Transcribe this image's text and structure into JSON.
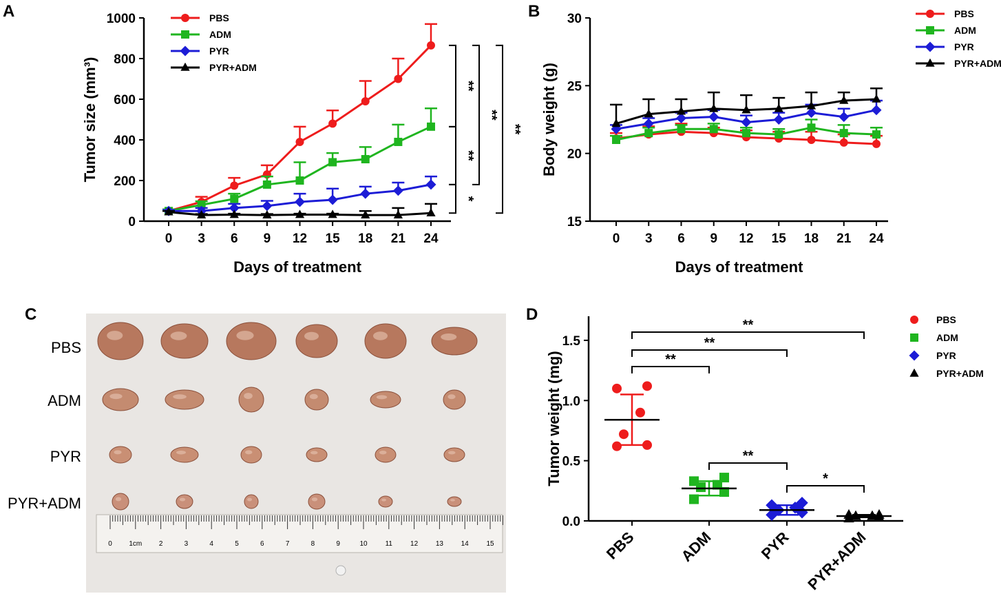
{
  "panels": {
    "A": "A",
    "B": "B",
    "C": "C",
    "D": "D"
  },
  "colors": {
    "PBS": "#ee1c1c",
    "ADM": "#1fb51f",
    "PYR": "#1c1cd6",
    "PYR+ADM": "#000000"
  },
  "photo": {
    "row_labels": [
      "PBS",
      "ADM",
      "PYR",
      "PYR+ADM"
    ],
    "ruler_labels": [
      "0",
      "1cm",
      "2",
      "3",
      "4",
      "5",
      "6",
      "7",
      "8",
      "9",
      "10",
      "11",
      "12",
      "13",
      "14",
      "15"
    ]
  },
  "chart_data": [
    {
      "id": "A",
      "type": "line",
      "xlabel": "Days of treatment",
      "ylabel": "Tumor size (mm³)",
      "x": [
        0,
        3,
        6,
        9,
        12,
        15,
        18,
        21,
        24
      ],
      "xticks": [
        "0",
        "3",
        "6",
        "9",
        "12",
        "15",
        "18",
        "21",
        "24"
      ],
      "ylim": [
        0,
        1000
      ],
      "yticks": [
        0,
        200,
        400,
        600,
        800,
        1000
      ],
      "ytick_labels": [
        "0",
        "200",
        "400",
        "600",
        "800",
        "1000"
      ],
      "legend_position": "top-left",
      "series": [
        {
          "name": "PBS",
          "marker": "circle",
          "values": [
            50,
            95,
            175,
            230,
            390,
            480,
            590,
            700,
            865
          ],
          "errors": [
            8,
            25,
            38,
            45,
            75,
            65,
            100,
            100,
            105
          ]
        },
        {
          "name": "ADM",
          "marker": "square",
          "values": [
            50,
            80,
            110,
            180,
            200,
            290,
            305,
            390,
            465
          ],
          "errors": [
            8,
            18,
            25,
            40,
            90,
            45,
            60,
            85,
            90
          ]
        },
        {
          "name": "PYR",
          "marker": "diamond",
          "values": [
            50,
            50,
            65,
            75,
            95,
            105,
            135,
            150,
            180
          ],
          "errors": [
            5,
            15,
            20,
            25,
            40,
            55,
            35,
            40,
            40
          ]
        },
        {
          "name": "PYR+ADM",
          "marker": "triangle",
          "values": [
            45,
            30,
            32,
            30,
            32,
            32,
            30,
            30,
            40
          ],
          "errors": [
            5,
            5,
            5,
            5,
            5,
            5,
            20,
            35,
            45
          ]
        }
      ],
      "significance": [
        {
          "label": "**",
          "between": [
            "PBS",
            "ADM"
          ],
          "level": 1
        },
        {
          "label": "**",
          "between": [
            "ADM",
            "PYR"
          ],
          "level": 1
        },
        {
          "label": "*",
          "between": [
            "PYR",
            "PYR+ADM"
          ],
          "level": 1
        },
        {
          "label": "**",
          "between": [
            "PBS",
            "PYR"
          ],
          "level": 2
        },
        {
          "label": "**",
          "between": [
            "PBS",
            "PYR+ADM"
          ],
          "level": 3
        }
      ]
    },
    {
      "id": "B",
      "type": "line",
      "xlabel": "Days of treatment",
      "ylabel": "Body weight (g)",
      "x": [
        0,
        3,
        6,
        9,
        12,
        15,
        18,
        21,
        24
      ],
      "xticks": [
        "0",
        "3",
        "6",
        "9",
        "12",
        "15",
        "18",
        "21",
        "24"
      ],
      "ylim": [
        15,
        30
      ],
      "yticks": [
        15,
        20,
        25,
        30
      ],
      "ytick_labels": [
        "15",
        "20",
        "25",
        "30"
      ],
      "legend_position": "top-right",
      "series": [
        {
          "name": "PBS",
          "marker": "circle",
          "values": [
            21.1,
            21.4,
            21.6,
            21.5,
            21.2,
            21.1,
            21.0,
            20.8,
            20.7
          ],
          "errors": [
            0.4,
            0.6,
            0.6,
            0.4,
            0.5,
            0.5,
            0.6,
            0.6,
            0.6
          ]
        },
        {
          "name": "ADM",
          "marker": "square",
          "values": [
            21.0,
            21.5,
            21.8,
            21.8,
            21.5,
            21.4,
            21.9,
            21.5,
            21.4
          ],
          "errors": [
            0.3,
            0.4,
            0.3,
            0.4,
            0.4,
            0.4,
            0.6,
            0.6,
            0.5
          ]
        },
        {
          "name": "PYR",
          "marker": "diamond",
          "values": [
            21.8,
            22.2,
            22.6,
            22.7,
            22.3,
            22.5,
            23.0,
            22.7,
            23.2
          ],
          "errors": [
            0.3,
            0.4,
            0.4,
            0.5,
            0.5,
            0.5,
            0.6,
            0.6,
            0.7
          ]
        },
        {
          "name": "PYR+ADM",
          "marker": "triangle",
          "values": [
            22.2,
            22.9,
            23.1,
            23.3,
            23.2,
            23.3,
            23.5,
            23.9,
            24.0
          ],
          "errors": [
            1.4,
            1.1,
            0.9,
            1.2,
            1.1,
            0.8,
            1.0,
            0.6,
            0.8
          ]
        }
      ]
    },
    {
      "id": "D",
      "type": "scatter",
      "ylabel": "Tumor weight (mg)",
      "categories": [
        "PBS",
        "ADM",
        "PYR",
        "PYR+ADM"
      ],
      "ylim": [
        0,
        1.7
      ],
      "yticks": [
        0,
        0.5,
        1.0,
        1.5
      ],
      "ytick_labels": [
        "0.0",
        "0.5",
        "1.0",
        "1.5"
      ],
      "legend_position": "top-right",
      "series": [
        {
          "name": "PBS",
          "marker": "circle",
          "points": [
            0.62,
            0.63,
            0.72,
            0.9,
            1.1,
            1.12
          ],
          "mean": 0.84,
          "sd": 0.21
        },
        {
          "name": "ADM",
          "marker": "square",
          "points": [
            0.18,
            0.24,
            0.28,
            0.3,
            0.33,
            0.36
          ],
          "mean": 0.27,
          "sd": 0.06
        },
        {
          "name": "PYR",
          "marker": "diamond",
          "points": [
            0.05,
            0.07,
            0.09,
            0.11,
            0.13,
            0.15
          ],
          "mean": 0.09,
          "sd": 0.04
        },
        {
          "name": "PYR+ADM",
          "marker": "triangle",
          "points": [
            0.02,
            0.03,
            0.04,
            0.04,
            0.05,
            0.05
          ],
          "mean": 0.04,
          "sd": 0.01
        }
      ],
      "significance": [
        {
          "label": "**",
          "between": [
            "PBS",
            "ADM"
          ]
        },
        {
          "label": "**",
          "between": [
            "PBS",
            "PYR"
          ]
        },
        {
          "label": "**",
          "between": [
            "PBS",
            "PYR+ADM"
          ]
        },
        {
          "label": "**",
          "between": [
            "ADM",
            "PYR"
          ]
        },
        {
          "label": "*",
          "between": [
            "PYR",
            "PYR+ADM"
          ]
        }
      ]
    }
  ]
}
